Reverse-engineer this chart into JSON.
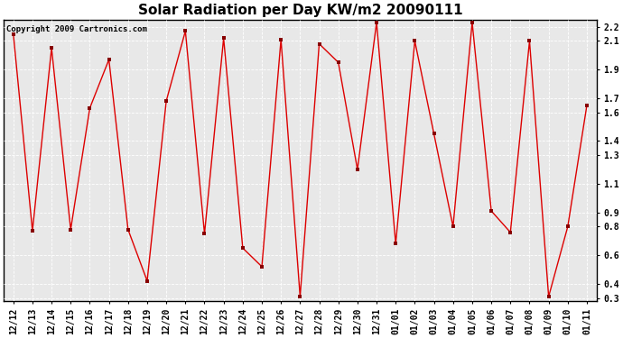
{
  "title": "Solar Radiation per Day KW/m2 20090111",
  "copyright": "Copyright 2009 Cartronics.com",
  "labels": [
    "12/12",
    "12/13",
    "12/14",
    "12/15",
    "12/16",
    "12/17",
    "12/18",
    "12/19",
    "12/20",
    "12/21",
    "12/22",
    "12/23",
    "12/24",
    "12/25",
    "12/26",
    "12/27",
    "12/28",
    "12/29",
    "12/30",
    "12/31",
    "01/01",
    "01/02",
    "01/03",
    "01/04",
    "01/05",
    "01/06",
    "01/07",
    "01/08",
    "01/09",
    "01/10",
    "01/11"
  ],
  "values": [
    2.15,
    0.77,
    2.05,
    0.78,
    1.63,
    1.97,
    0.78,
    0.42,
    1.68,
    2.17,
    0.75,
    2.12,
    0.65,
    0.52,
    2.11,
    0.31,
    2.08,
    1.95,
    1.2,
    2.23,
    0.68,
    2.1,
    1.45,
    0.8,
    2.23,
    0.91,
    0.76,
    2.1,
    0.31,
    0.8,
    1.65
  ],
  "ylim_min": 0.28,
  "ylim_max": 2.25,
  "yticks": [
    0.3,
    0.4,
    0.6,
    0.8,
    0.9,
    1.1,
    1.3,
    1.4,
    1.6,
    1.7,
    1.9,
    2.1,
    2.2
  ],
  "ytick_labels": [
    "0.3",
    "0.4",
    "0.6",
    "0.8",
    "0.9",
    "1.1",
    "1.3",
    "1.4",
    "1.6",
    "1.7",
    "1.9",
    "2.1",
    "2.2"
  ],
  "line_color": "#dd0000",
  "marker_color": "#880000",
  "bg_color": "#ffffff",
  "plot_bg_color": "#e8e8e8",
  "grid_color": "#ffffff",
  "border_color": "#000000",
  "title_fontsize": 11,
  "tick_fontsize": 7,
  "copyright_fontsize": 6.5
}
